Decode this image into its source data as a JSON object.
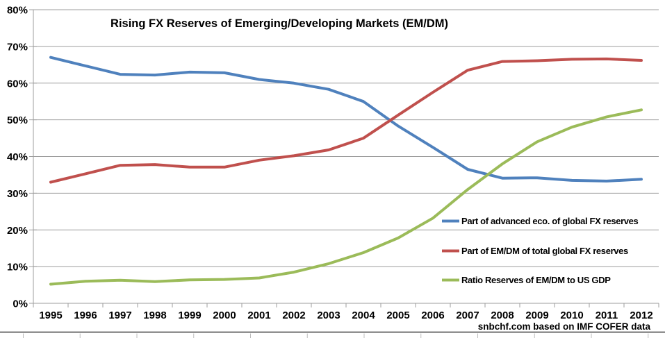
{
  "title": "Rising FX Reserves of Emerging/Developing Markets (EM/DM)",
  "attribution": "snbchf.com based on IMF COFER data",
  "colors": {
    "advanced_line": "#4F81BD",
    "emdm_line": "#C0504D",
    "ratio_line": "#9BBB59",
    "gridline": "#9d9d9d",
    "axis": "#9d9d9d",
    "text": "#000000",
    "sheet_border_dark": "#3b3b3b",
    "sheet_border_light": "#bdbdbd"
  },
  "chart_data": {
    "type": "line",
    "title": "Rising FX Reserves of Emerging/Developing Markets (EM/DM)",
    "xlabel": "",
    "ylabel": "",
    "categories": [
      "1995",
      "1996",
      "1997",
      "1998",
      "1999",
      "2000",
      "2001",
      "2002",
      "2003",
      "2004",
      "2005",
      "2006",
      "2007",
      "2008",
      "2009",
      "2010",
      "2011",
      "2012"
    ],
    "series": [
      {
        "name": "Part of advanced eco. of  global FX reserves",
        "color": "#4F81BD",
        "values": [
          67.0,
          64.7,
          62.4,
          62.2,
          63.0,
          62.8,
          61.0,
          60.0,
          58.3,
          55.0,
          48.3,
          42.5,
          36.5,
          34.1,
          34.2,
          33.5,
          33.3,
          33.8
        ]
      },
      {
        "name": "Part of EM/DM of total global FX reserves",
        "color": "#C0504D",
        "values": [
          33.0,
          35.3,
          37.6,
          37.8,
          37.1,
          37.1,
          39.0,
          40.2,
          41.8,
          45.0,
          51.3,
          57.5,
          63.5,
          65.9,
          66.1,
          66.5,
          66.6,
          66.2
        ]
      },
      {
        "name": "Ratio Reserves of EM/DM to US GDP",
        "color": "#9BBB59",
        "values": [
          5.2,
          6.0,
          6.3,
          5.9,
          6.4,
          6.5,
          6.9,
          8.5,
          10.8,
          13.8,
          17.8,
          23.2,
          31.0,
          38.0,
          44.0,
          48.0,
          50.8,
          52.7
        ]
      }
    ],
    "ylim": [
      0,
      80
    ],
    "y_tick_step": 10,
    "y_tick_labels": [
      "0%",
      "10%",
      "20%",
      "30%",
      "40%",
      "50%",
      "60%",
      "70%",
      "80%"
    ],
    "grid": true,
    "legend_position": "inside-right"
  }
}
